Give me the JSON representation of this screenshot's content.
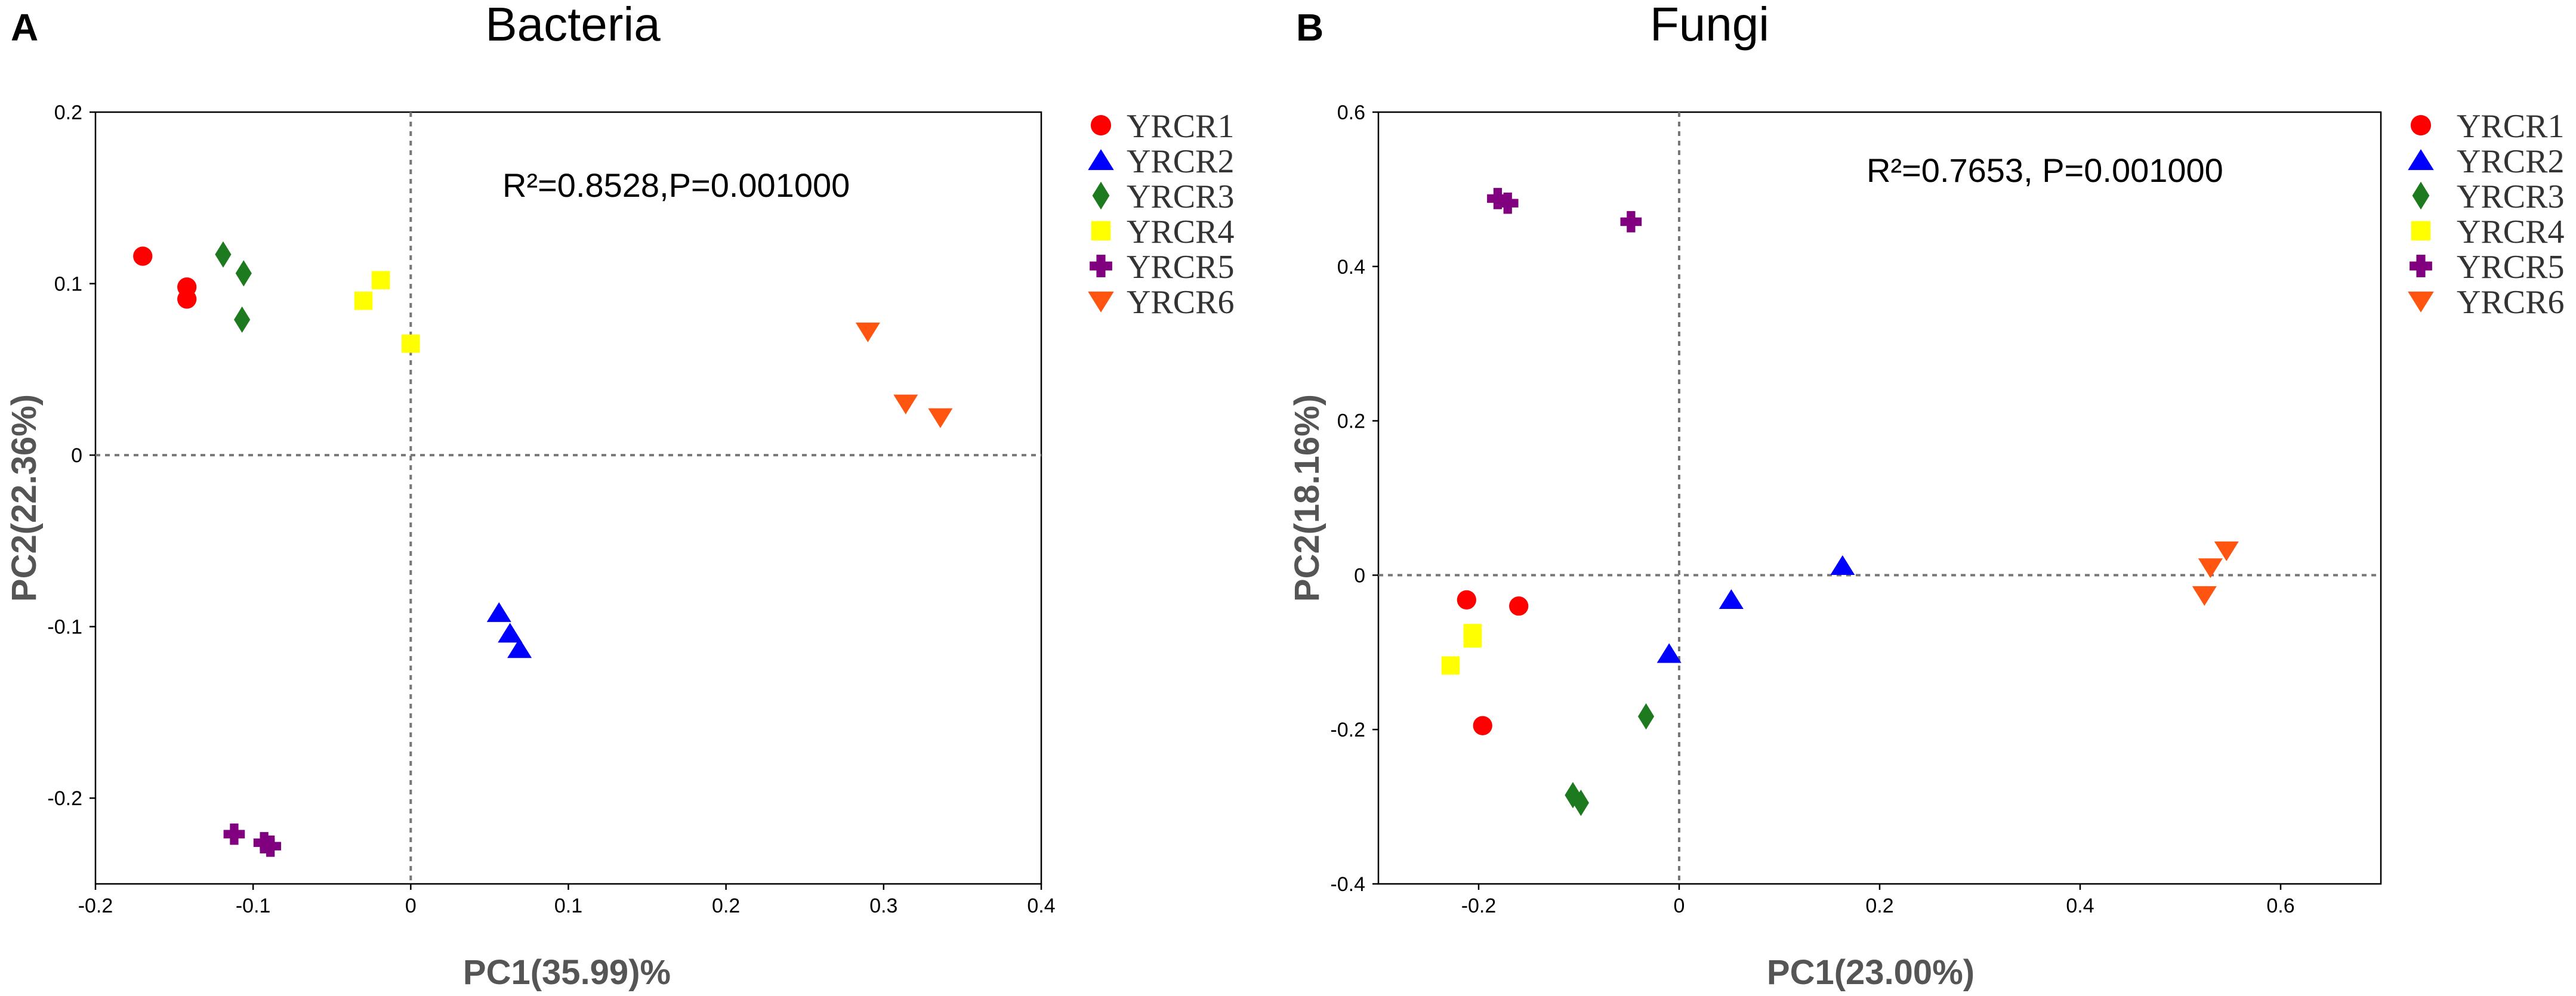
{
  "chart_data": [
    {
      "type": "scatter",
      "panel_letter": "A",
      "title": "Bacteria",
      "xlabel": "PC1(35.99)%",
      "ylabel": "PC2(22.36%)",
      "xlim": [
        -0.2,
        0.4
      ],
      "ylim": [
        -0.25,
        0.2
      ],
      "xticks": [
        -0.2,
        -0.1,
        0,
        0.1,
        0.2,
        0.3,
        0.4
      ],
      "yticks": [
        -0.2,
        -0.1,
        0,
        0.1,
        0.2
      ],
      "xtick_labels": [
        "-0.2",
        "-0.1",
        "0",
        "0.1",
        "0.2",
        "0.3",
        "0.4"
      ],
      "ytick_labels": [
        "-0.2",
        "-0.1",
        "0",
        "0.1",
        "0.2"
      ],
      "reference_lines": {
        "x": 0,
        "y": 0
      },
      "annotation": "R²=0.8528,P=0.001000",
      "legend_position": "outside-right-top",
      "series": [
        {
          "name": "YRCR1",
          "marker": "circle",
          "color": "#ff0000",
          "points": [
            [
              -0.17,
              0.116
            ],
            [
              -0.142,
              0.098
            ],
            [
              -0.142,
              0.091
            ]
          ]
        },
        {
          "name": "YRCR2",
          "marker": "triangle-up",
          "color": "#0000ff",
          "points": [
            [
              0.056,
              -0.092
            ],
            [
              0.063,
              -0.104
            ],
            [
              0.069,
              -0.113
            ]
          ]
        },
        {
          "name": "YRCR3",
          "marker": "diamond",
          "color": "#1e7a1e",
          "points": [
            [
              -0.119,
              0.117
            ],
            [
              -0.106,
              0.106
            ],
            [
              -0.107,
              0.079
            ]
          ]
        },
        {
          "name": "YRCR4",
          "marker": "square",
          "color": "#ffff00",
          "points": [
            [
              -0.019,
              0.102
            ],
            [
              -0.03,
              0.09
            ],
            [
              0.0,
              0.065
            ]
          ]
        },
        {
          "name": "YRCR5",
          "marker": "plus",
          "color": "#800080",
          "points": [
            [
              -0.112,
              -0.221
            ],
            [
              -0.093,
              -0.226
            ],
            [
              -0.089,
              -0.228
            ]
          ]
        },
        {
          "name": "YRCR6",
          "marker": "triangle-down",
          "color": "#ff5511",
          "points": [
            [
              0.29,
              0.072
            ],
            [
              0.314,
              0.03
            ],
            [
              0.336,
              0.022
            ]
          ]
        }
      ]
    },
    {
      "type": "scatter",
      "panel_letter": "B",
      "title": "Fungi",
      "xlabel": "PC1(23.00%)",
      "ylabel": "PC2(18.16%)",
      "xlim": [
        -0.3,
        0.7
      ],
      "ylim": [
        -0.4,
        0.6
      ],
      "xticks": [
        -0.2,
        0,
        0.2,
        0.4,
        0.6
      ],
      "yticks": [
        -0.4,
        -0.2,
        0,
        0.2,
        0.4,
        0.6
      ],
      "xtick_labels": [
        "-0.2",
        "0",
        "0.2",
        "0.4",
        "0.6"
      ],
      "ytick_labels": [
        "-0.4",
        "-0.2",
        "0",
        "0.2",
        "0.4",
        "0.6"
      ],
      "reference_lines": {
        "x": 0,
        "y": 0
      },
      "annotation": "R²=0.7653, P=0.001000",
      "legend_position": "outside-right-top",
      "series": [
        {
          "name": "YRCR1",
          "marker": "circle",
          "color": "#ff0000",
          "points": [
            [
              -0.212,
              -0.032
            ],
            [
              -0.16,
              -0.04
            ],
            [
              -0.196,
              -0.195
            ]
          ]
        },
        {
          "name": "YRCR2",
          "marker": "triangle-up",
          "color": "#0000ff",
          "points": [
            [
              0.163,
              0.012
            ],
            [
              0.052,
              -0.032
            ],
            [
              -0.01,
              -0.102
            ]
          ]
        },
        {
          "name": "YRCR3",
          "marker": "diamond",
          "color": "#1e7a1e",
          "points": [
            [
              -0.033,
              -0.183
            ],
            [
              -0.106,
              -0.285
            ],
            [
              -0.098,
              -0.295
            ]
          ]
        },
        {
          "name": "YRCR4",
          "marker": "square",
          "color": "#ffff00",
          "points": [
            [
              -0.206,
              -0.075
            ],
            [
              -0.206,
              -0.082
            ],
            [
              -0.228,
              -0.117
            ]
          ]
        },
        {
          "name": "YRCR5",
          "marker": "plus",
          "color": "#800080",
          "points": [
            [
              -0.181,
              0.488
            ],
            [
              -0.171,
              0.482
            ],
            [
              -0.048,
              0.458
            ]
          ]
        },
        {
          "name": "YRCR6",
          "marker": "triangle-down",
          "color": "#ff5511",
          "points": [
            [
              0.546,
              0.032
            ],
            [
              0.53,
              0.01
            ],
            [
              0.524,
              -0.026
            ]
          ]
        }
      ]
    }
  ]
}
